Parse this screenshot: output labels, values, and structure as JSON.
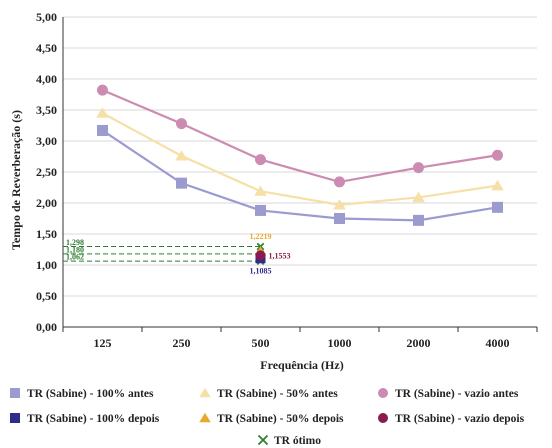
{
  "chart_data": {
    "type": "line",
    "xlabel": "Frequência (Hz)",
    "ylabel": "Tempo de Reverberação (s)",
    "categories": [
      "125",
      "250",
      "500",
      "1000",
      "2000",
      "4000"
    ],
    "ylim": [
      0,
      5
    ],
    "yticks": [
      "0,00",
      "0,50",
      "1,00",
      "1,50",
      "2,00",
      "2,50",
      "3,00",
      "3,50",
      "4,00",
      "4,50",
      "5,00"
    ],
    "grid": true,
    "legend_position": "bottom",
    "series": [
      {
        "name": "TR (Sabine) - 100% antes",
        "color": "#9b9bd0",
        "marker": "square",
        "values": [
          3.17,
          2.32,
          1.88,
          1.75,
          1.72,
          1.93
        ]
      },
      {
        "name": "TR (Sabine) - 50% antes",
        "color": "#f7e0a8",
        "marker": "triangle",
        "values": [
          3.45,
          2.76,
          2.19,
          1.97,
          2.09,
          2.28
        ]
      },
      {
        "name": "TR (Sabine) - vazio antes",
        "color": "#cc8bb0",
        "marker": "circle",
        "values": [
          3.82,
          3.28,
          2.7,
          2.34,
          2.57,
          2.77
        ]
      }
    ],
    "after_series": [
      {
        "name": "TR (Sabine) - 100% depois",
        "color": "#2e2e8a",
        "marker": "square",
        "x": "500",
        "y": 1.1085,
        "label": "1,1085"
      },
      {
        "name": "TR (Sabine) - 50% depois",
        "color": "#e8a92e",
        "marker": "triangle",
        "x": "500",
        "y": 1.2219,
        "label": "1,2219"
      },
      {
        "name": "TR (Sabine) - vazio depois",
        "color": "#8b1a4f",
        "marker": "circle",
        "x": "500",
        "y": 1.1553,
        "label": "1,1553"
      }
    ],
    "optimal": {
      "name": "TR ótimo",
      "color": "#2e7d32",
      "marker": "x",
      "x": "500",
      "values": [
        1.062,
        1.18,
        1.298
      ],
      "labels": [
        "1,062",
        "1,180",
        "1,298"
      ]
    }
  }
}
